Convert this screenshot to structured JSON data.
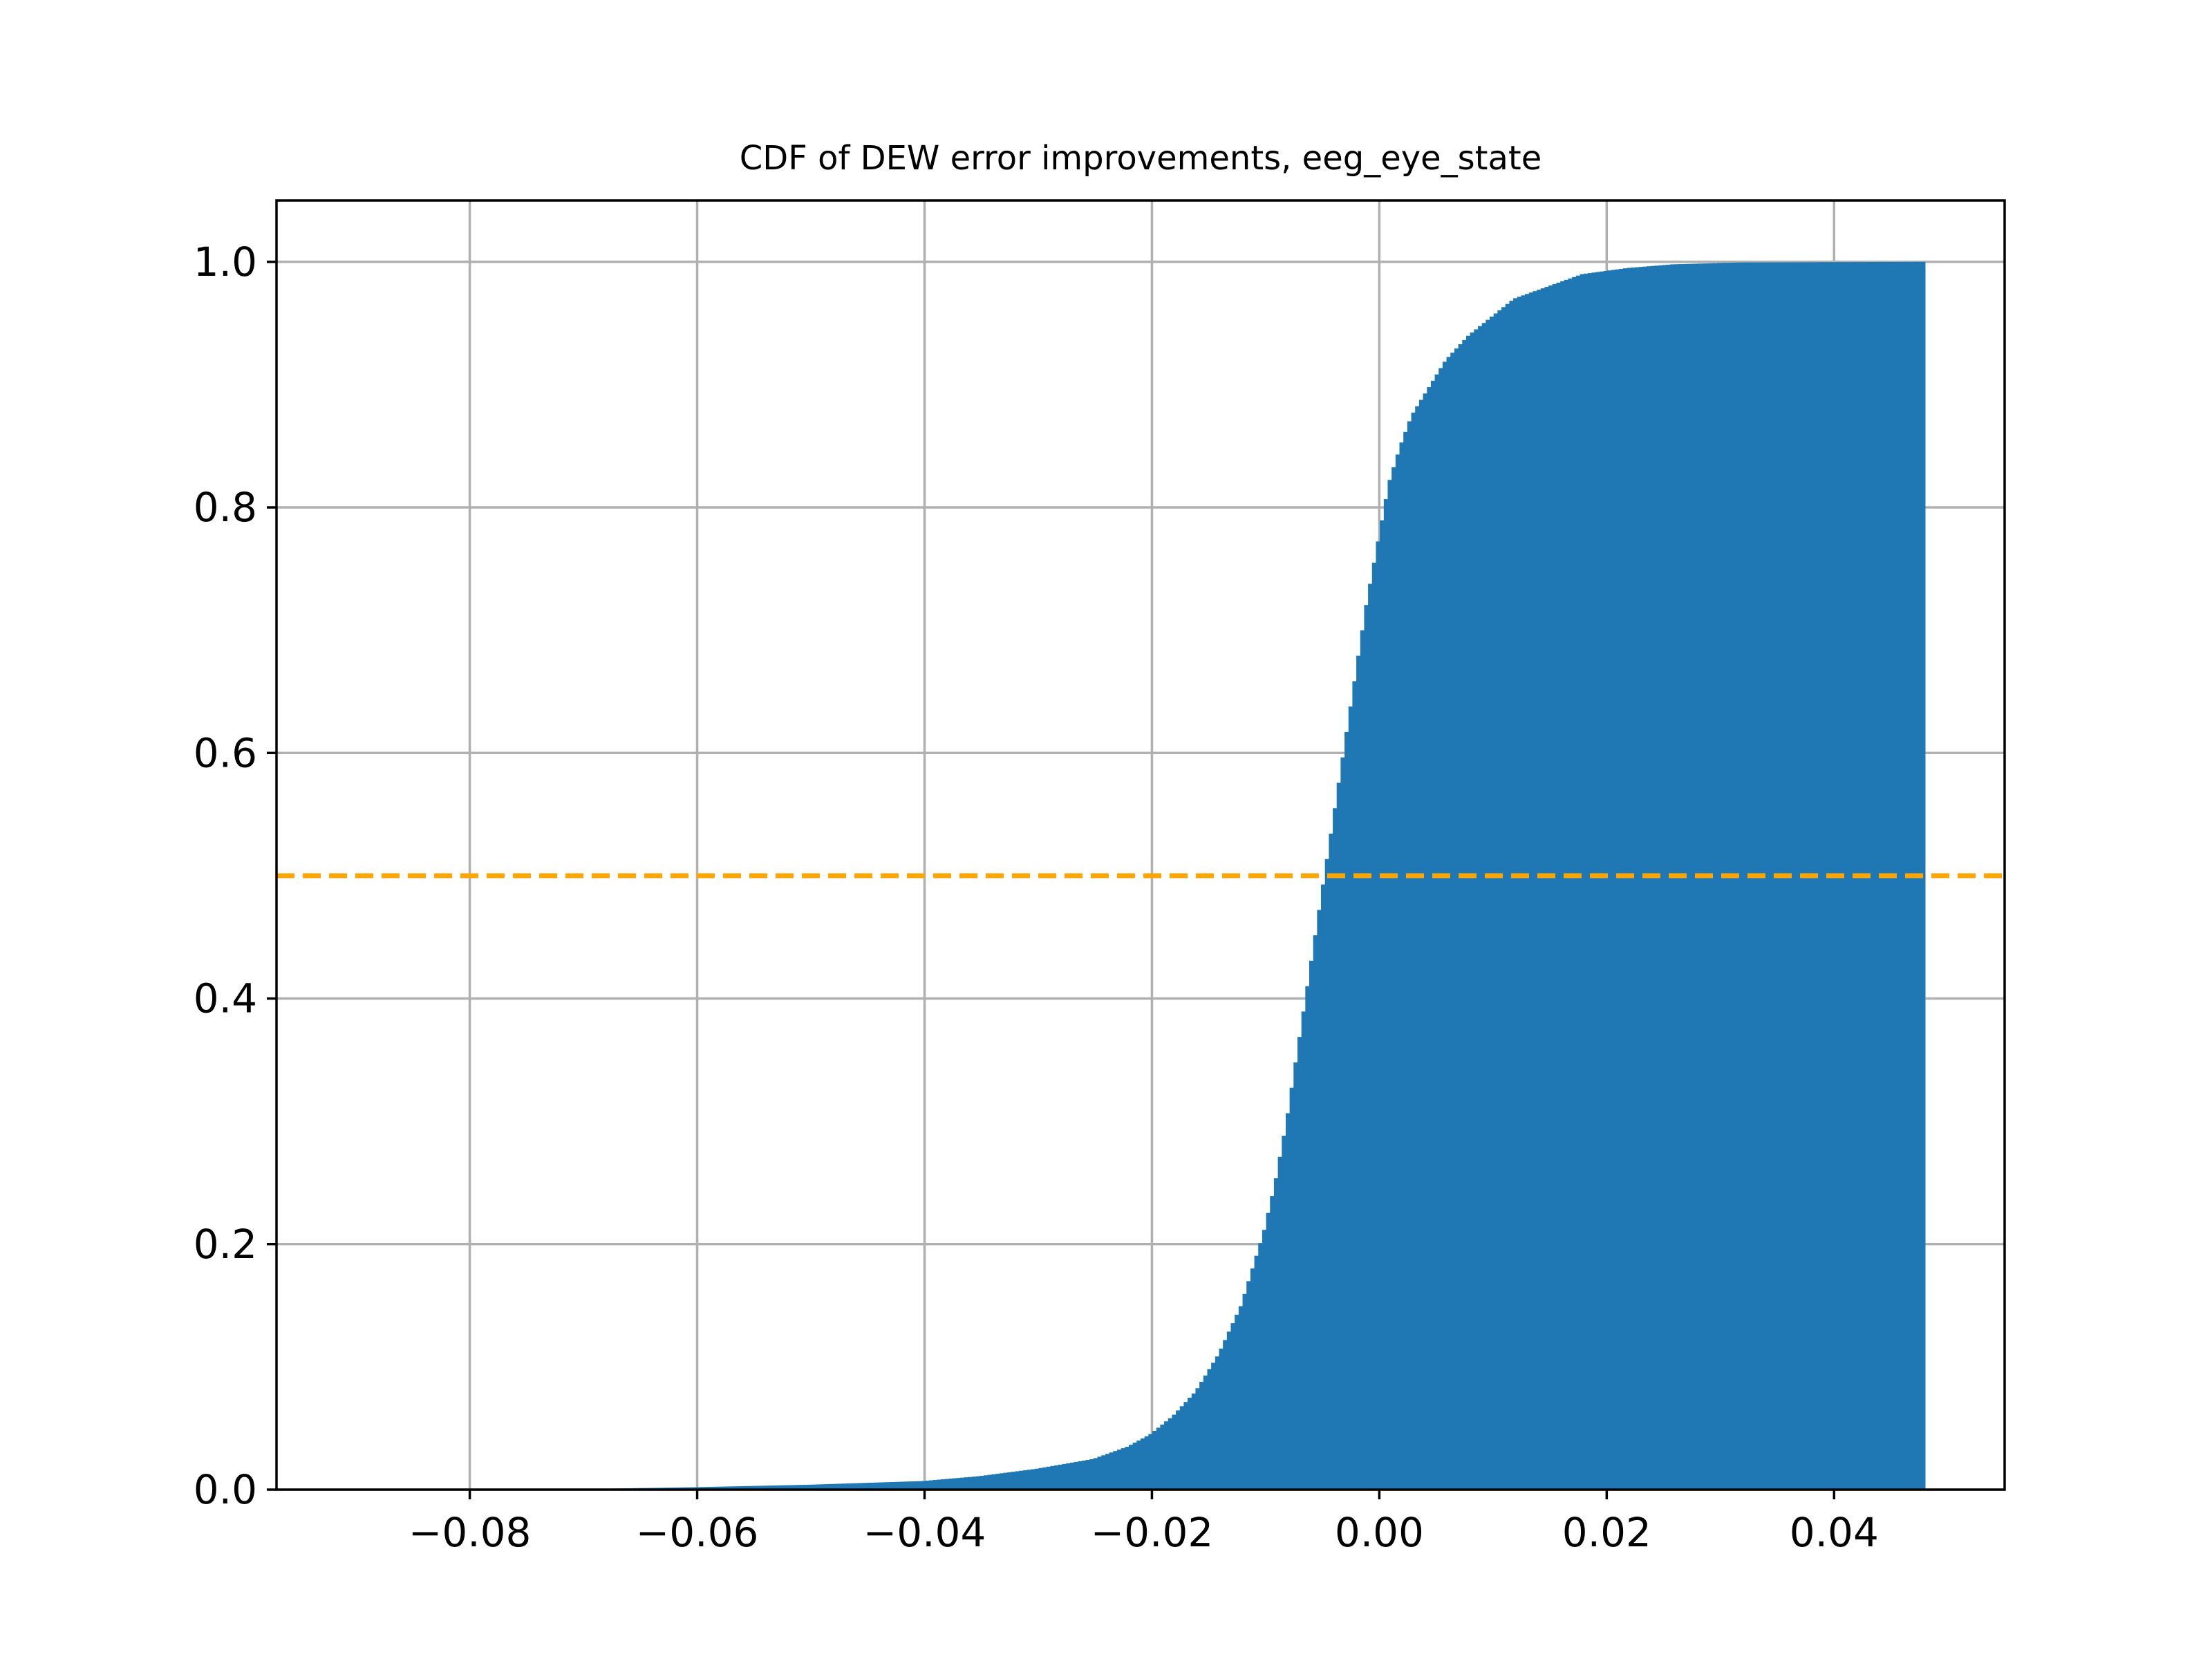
{
  "chart_data": {
    "type": "histogram-cdf",
    "title": "CDF of DEW error improvements, eeg_eye_state",
    "xlabel": "",
    "ylabel": "",
    "xlim": [
      -0.097,
      0.055
    ],
    "ylim": [
      0.0,
      1.05
    ],
    "xticks": [
      -0.08,
      -0.06,
      -0.04,
      -0.02,
      0.0,
      0.02,
      0.04
    ],
    "xtick_labels": [
      "−0.08",
      "−0.06",
      "−0.04",
      "−0.02",
      "0.00",
      "0.02",
      "0.04"
    ],
    "yticks": [
      0.0,
      0.2,
      0.4,
      0.6,
      0.8,
      1.0
    ],
    "ytick_labels": [
      "0.0",
      "0.2",
      "0.4",
      "0.6",
      "0.8",
      "1.0"
    ],
    "grid": true,
    "bar_color": "#1f77b4",
    "data_range": [
      -0.09,
      0.048
    ],
    "bins": 400,
    "cdf_points": [
      [
        -0.09,
        0.0
      ],
      [
        -0.07,
        0.0005
      ],
      [
        -0.06,
        0.002
      ],
      [
        -0.05,
        0.004
      ],
      [
        -0.04,
        0.007
      ],
      [
        -0.035,
        0.011
      ],
      [
        -0.03,
        0.017
      ],
      [
        -0.025,
        0.025
      ],
      [
        -0.022,
        0.035
      ],
      [
        -0.02,
        0.045
      ],
      [
        -0.018,
        0.06
      ],
      [
        -0.016,
        0.08
      ],
      [
        -0.014,
        0.11
      ],
      [
        -0.012,
        0.15
      ],
      [
        -0.01,
        0.21
      ],
      [
        -0.009,
        0.25
      ],
      [
        -0.008,
        0.3
      ],
      [
        -0.007,
        0.36
      ],
      [
        -0.006,
        0.42
      ],
      [
        -0.005,
        0.48
      ],
      [
        -0.004,
        0.54
      ],
      [
        -0.003,
        0.6
      ],
      [
        -0.002,
        0.66
      ],
      [
        -0.001,
        0.72
      ],
      [
        0.0,
        0.77
      ],
      [
        0.001,
        0.82
      ],
      [
        0.002,
        0.85
      ],
      [
        0.003,
        0.875
      ],
      [
        0.004,
        0.89
      ],
      [
        0.005,
        0.905
      ],
      [
        0.006,
        0.92
      ],
      [
        0.008,
        0.94
      ],
      [
        0.01,
        0.955
      ],
      [
        0.012,
        0.97
      ],
      [
        0.015,
        0.98
      ],
      [
        0.018,
        0.99
      ],
      [
        0.022,
        0.995
      ],
      [
        0.026,
        0.998
      ],
      [
        0.032,
        0.9995
      ],
      [
        0.048,
        1.0
      ]
    ],
    "reference_line": {
      "y": 0.5,
      "color": "#ffa500",
      "style": "dashed"
    }
  }
}
